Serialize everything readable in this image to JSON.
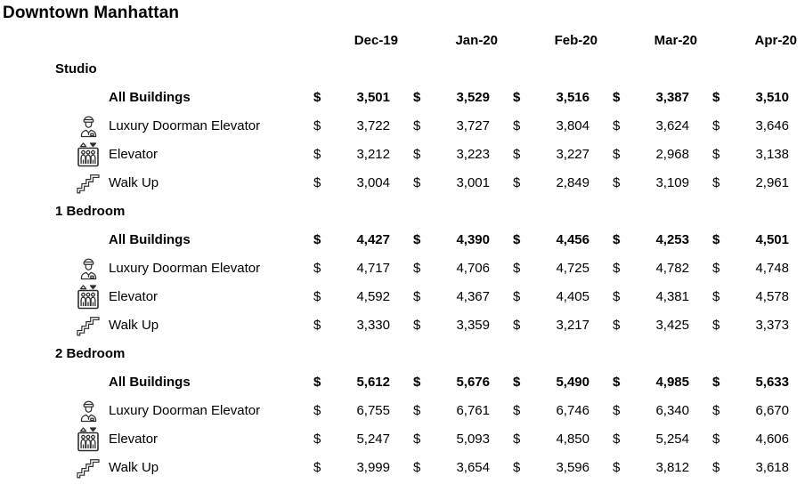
{
  "chart_data": {
    "type": "table",
    "title": "Downtown Manhattan",
    "columns": [
      "Dec-19",
      "Jan-20",
      "Feb-20",
      "Mar-20",
      "Apr-20"
    ],
    "currency_symbol": "$",
    "icon_names": [
      "doorman-icon",
      "elevator-icon",
      "stairs-icon"
    ],
    "text_color": "#000000",
    "icon_color": "#2e2e2e",
    "background_color": "#ffffff",
    "sections": [
      {
        "name": "Studio",
        "rows": [
          {
            "label": "All Buildings",
            "icon": "none",
            "bold": true,
            "values": [
              3501,
              3529,
              3516,
              3387,
              3510
            ]
          },
          {
            "label": "Luxury Doorman Elevator",
            "icon": "doorman",
            "bold": false,
            "values": [
              3722,
              3727,
              3804,
              3624,
              3646
            ]
          },
          {
            "label": "Elevator",
            "icon": "elevator",
            "bold": false,
            "values": [
              3212,
              3223,
              3227,
              2968,
              3138
            ]
          },
          {
            "label": "Walk Up",
            "icon": "stairs",
            "bold": false,
            "values": [
              3004,
              3001,
              2849,
              3109,
              2961
            ]
          }
        ]
      },
      {
        "name": "1 Bedroom",
        "rows": [
          {
            "label": "All Buildings",
            "icon": "none",
            "bold": true,
            "values": [
              4427,
              4390,
              4456,
              4253,
              4501
            ]
          },
          {
            "label": "Luxury Doorman Elevator",
            "icon": "doorman",
            "bold": false,
            "values": [
              4717,
              4706,
              4725,
              4782,
              4748
            ]
          },
          {
            "label": "Elevator",
            "icon": "elevator",
            "bold": false,
            "values": [
              4592,
              4367,
              4405,
              4381,
              4578
            ]
          },
          {
            "label": "Walk Up",
            "icon": "stairs",
            "bold": false,
            "values": [
              3330,
              3359,
              3217,
              3425,
              3373
            ]
          }
        ]
      },
      {
        "name": "2 Bedroom",
        "rows": [
          {
            "label": "All Buildings",
            "icon": "none",
            "bold": true,
            "values": [
              5612,
              5676,
              5490,
              4985,
              5633
            ]
          },
          {
            "label": "Luxury Doorman Elevator",
            "icon": "doorman",
            "bold": false,
            "values": [
              6755,
              6761,
              6746,
              6340,
              6670
            ]
          },
          {
            "label": "Elevator",
            "icon": "elevator",
            "bold": false,
            "values": [
              5247,
              5093,
              4850,
              5254,
              4606
            ]
          },
          {
            "label": "Walk Up",
            "icon": "stairs",
            "bold": false,
            "values": [
              3999,
              3654,
              3596,
              3812,
              3618
            ]
          }
        ]
      }
    ]
  }
}
